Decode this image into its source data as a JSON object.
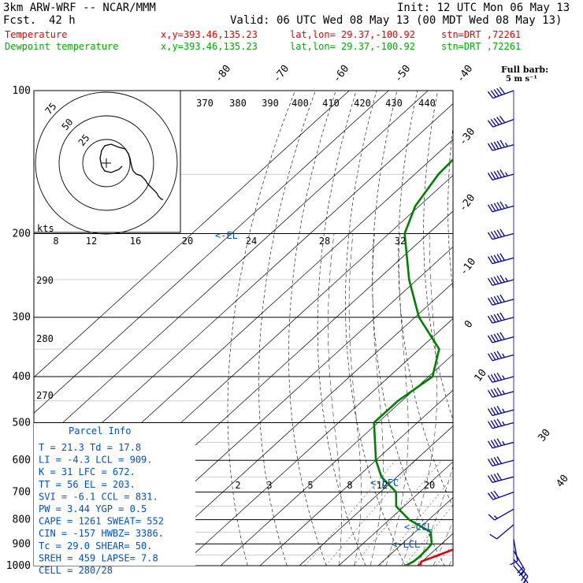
{
  "header": {
    "model": "3km ARW-WRF -- NCAR/MMM",
    "init": "Init: 12 UTC Mon 06 May 13",
    "fcst_label": "Fcst.",
    "fcst_value": "42 h",
    "valid": "Valid: 06 UTC Wed 08 May 13 (00 MDT Wed 08 May 13)",
    "temp_legend": "Temperature",
    "dew_legend": "Dewpoint temperature",
    "xy": "x,y=393.46,135.23",
    "latlon": "lat,lon= 29.37,-100.92",
    "stn": "stn=DRT ,72261"
  },
  "colors": {
    "temperature": "#e00000",
    "dewpoint": "#008000",
    "parcel_info": "#0050c8",
    "barbs": "#0000a0",
    "isobars": "#000000"
  },
  "wind_barb_legend": {
    "line1": "Full barb:",
    "line2": "5 m s⁻¹"
  },
  "hodograph": {
    "rings": [
      "75",
      "50",
      "25"
    ],
    "speed_labels": [
      "8",
      "12",
      "16",
      "20",
      "24",
      "28",
      "32"
    ],
    "units": "kts"
  },
  "el_marker": "<-EL",
  "lfc_marker": "<-LFC",
  "ccl_marker": "<-CCL",
  "lcl_marker": "<-LCL",
  "parcel_info": {
    "title": "Parcel Info",
    "rows": [
      "T  =    21.3  Td =  17.8",
      "LI =    -4.3  LCL =  909.",
      "K  =      31  LFC =  672.",
      "TT =      56  EL  =  203.",
      "SVI =   -6.1  CCL =  831.",
      "PW =    3.44  YGP =   0.5",
      "CAPE =  1261  SWEAT=  552",
      "CIN =   -157  HWBZ= 3386.",
      "Tc =    29.0  SHEAR=  50.",
      "SREH =   459  LAPSE=  7.8",
      "CELL = 280/28"
    ]
  },
  "chart_data": {
    "type": "line",
    "chart_kind": "skew-T log-P sounding",
    "y_axis": {
      "label": "pressure (hPa)",
      "scale": "log",
      "range": [
        1000,
        100
      ],
      "ticks": [
        100,
        200,
        300,
        400,
        500,
        600,
        700,
        800,
        900,
        1000
      ]
    },
    "isotherm_labels": [
      "-80",
      "-70",
      "-60",
      "-50",
      "-40",
      "-30",
      "-20",
      "-10",
      "0",
      "10",
      "30",
      "40"
    ],
    "theta_labels": [
      "370",
      "380",
      "390",
      "400",
      "410",
      "420",
      "430",
      "440",
      "290",
      "280",
      "270"
    ],
    "mixing_ratio_labels": [
      "2",
      "3",
      "5",
      "8",
      "12",
      "20"
    ],
    "series": [
      {
        "name": "Temperature",
        "color": "#e00000",
        "points": [
          {
            "p": 1000,
            "t": 20.6
          },
          {
            "p": 980,
            "t": 19.8
          },
          {
            "p": 960,
            "t": 21.5
          },
          {
            "p": 925,
            "t": 24.5
          },
          {
            "p": 900,
            "t": 23.5
          },
          {
            "p": 850,
            "t": 22.0
          },
          {
            "p": 800,
            "t": 19.5
          },
          {
            "p": 750,
            "t": 16.0
          },
          {
            "p": 700,
            "t": 12.5
          },
          {
            "p": 650,
            "t": 6.0
          },
          {
            "p": 600,
            "t": 1.0
          },
          {
            "p": 500,
            "t": -9.0
          },
          {
            "p": 450,
            "t": -15.0
          },
          {
            "p": 400,
            "t": -21.0
          },
          {
            "p": 350,
            "t": -28.5
          },
          {
            "p": 300,
            "t": -36.5
          },
          {
            "p": 250,
            "t": -47.0
          },
          {
            "p": 225,
            "t": -53.0
          },
          {
            "p": 200,
            "t": -60.0
          },
          {
            "p": 175,
            "t": -64.5
          },
          {
            "p": 150,
            "t": -65.5
          },
          {
            "p": 125,
            "t": -65.0
          },
          {
            "p": 110,
            "t": -67.0
          },
          {
            "p": 100,
            "t": -69.0
          }
        ]
      },
      {
        "name": "Dewpoint temperature",
        "color": "#008000",
        "points": [
          {
            "p": 1000,
            "t": 17.0
          },
          {
            "p": 980,
            "t": 17.8
          },
          {
            "p": 960,
            "t": 18.0
          },
          {
            "p": 925,
            "t": 17.8
          },
          {
            "p": 900,
            "t": 17.5
          },
          {
            "p": 850,
            "t": 14.0
          },
          {
            "p": 800,
            "t": 5.0
          },
          {
            "p": 750,
            "t": -2.0
          },
          {
            "p": 700,
            "t": -6.0
          },
          {
            "p": 650,
            "t": -14.0
          },
          {
            "p": 600,
            "t": -20.0
          },
          {
            "p": 500,
            "t": -31.0
          },
          {
            "p": 450,
            "t": -31.0
          },
          {
            "p": 400,
            "t": -29.0
          },
          {
            "p": 350,
            "t": -35.0
          },
          {
            "p": 300,
            "t": -49.0
          },
          {
            "p": 250,
            "t": -62.0
          },
          {
            "p": 200,
            "t": -76.0
          },
          {
            "p": 175,
            "t": -81.0
          },
          {
            "p": 150,
            "t": -84.0
          },
          {
            "p": 125,
            "t": -85.0
          },
          {
            "p": 110,
            "t": -87.0
          },
          {
            "p": 100,
            "t": -88.0
          }
        ]
      }
    ],
    "hodograph_trace_kts": [
      [
        10,
        -2
      ],
      [
        8,
        -4
      ],
      [
        3,
        -6
      ],
      [
        -1,
        -5
      ],
      [
        -3,
        -2
      ],
      [
        -4,
        3
      ],
      [
        -3,
        8
      ],
      [
        -1,
        11
      ],
      [
        3,
        12
      ],
      [
        8,
        10
      ],
      [
        12,
        9
      ],
      [
        14,
        6
      ],
      [
        15,
        3
      ],
      [
        16,
        -2
      ],
      [
        17,
        -5
      ],
      [
        19,
        -7
      ],
      [
        22,
        -8
      ],
      [
        24,
        -10
      ],
      [
        25,
        -11
      ],
      [
        26,
        -13
      ],
      [
        28,
        -15
      ],
      [
        30,
        -17
      ],
      [
        32,
        -19
      ],
      [
        33,
        -21
      ],
      [
        35,
        -23
      ],
      [
        36,
        -23
      ]
    ],
    "wind_barbs": [
      {
        "p": 100,
        "dir": 250,
        "kts": 50
      },
      {
        "p": 115,
        "dir": 250,
        "kts": 50
      },
      {
        "p": 130,
        "dir": 255,
        "kts": 55
      },
      {
        "p": 150,
        "dir": 255,
        "kts": 55
      },
      {
        "p": 175,
        "dir": 255,
        "kts": 55
      },
      {
        "p": 200,
        "dir": 255,
        "kts": 50
      },
      {
        "p": 225,
        "dir": 255,
        "kts": 50
      },
      {
        "p": 250,
        "dir": 255,
        "kts": 55
      },
      {
        "p": 275,
        "dir": 255,
        "kts": 50
      },
      {
        "p": 300,
        "dir": 255,
        "kts": 50
      },
      {
        "p": 330,
        "dir": 255,
        "kts": 50
      },
      {
        "p": 360,
        "dir": 255,
        "kts": 45
      },
      {
        "p": 400,
        "dir": 255,
        "kts": 45
      },
      {
        "p": 430,
        "dir": 255,
        "kts": 45
      },
      {
        "p": 470,
        "dir": 255,
        "kts": 45
      },
      {
        "p": 500,
        "dir": 255,
        "kts": 45
      },
      {
        "p": 550,
        "dir": 255,
        "kts": 45
      },
      {
        "p": 600,
        "dir": 255,
        "kts": 40
      },
      {
        "p": 650,
        "dir": 255,
        "kts": 40
      },
      {
        "p": 700,
        "dir": 250,
        "kts": 30
      },
      {
        "p": 760,
        "dir": 240,
        "kts": 15
      },
      {
        "p": 820,
        "dir": 230,
        "kts": 10
      },
      {
        "p": 880,
        "dir": 170,
        "kts": 10
      },
      {
        "p": 930,
        "dir": 150,
        "kts": 20
      },
      {
        "p": 970,
        "dir": 140,
        "kts": 25
      },
      {
        "p": 1000,
        "dir": 140,
        "kts": 20
      }
    ]
  }
}
